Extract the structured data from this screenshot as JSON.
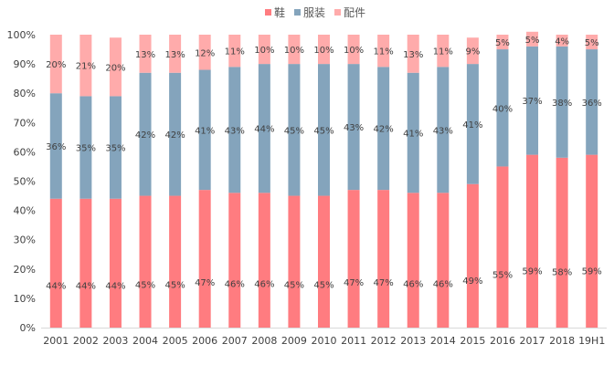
{
  "chart_data": {
    "type": "bar",
    "stacked": true,
    "percent": true,
    "categories": [
      "2001",
      "2002",
      "2003",
      "2004",
      "2005",
      "2006",
      "2007",
      "2008",
      "2009",
      "2010",
      "2011",
      "2012",
      "2013",
      "2014",
      "2015",
      "2016",
      "2017",
      "2018",
      "19H1"
    ],
    "series": [
      {
        "name": "鞋",
        "color": "#FF7C80",
        "values": [
          44,
          44,
          44,
          45,
          45,
          47,
          46,
          46,
          45,
          45,
          47,
          47,
          46,
          46,
          49,
          55,
          59,
          58,
          59
        ],
        "labels": [
          "44%",
          "44%",
          "44%",
          "45%",
          "45%",
          "47%",
          "46%",
          "46%",
          "45%",
          "45%",
          "47%",
          "47%",
          "46%",
          "46%",
          "49%",
          "55%",
          "59%",
          "58%",
          "59%"
        ]
      },
      {
        "name": "服装",
        "color": "#84A4BC",
        "values": [
          36,
          35,
          35,
          42,
          42,
          41,
          43,
          44,
          45,
          45,
          43,
          42,
          41,
          43,
          41,
          40,
          37,
          38,
          36
        ],
        "labels": [
          "36%",
          "35%",
          "35%",
          "42%",
          "42%",
          "41%",
          "43%",
          "44%",
          "45%",
          "45%",
          "43%",
          "42%",
          "41%",
          "43%",
          "41%",
          "40%",
          "37%",
          "38%",
          "36%"
        ]
      },
      {
        "name": "配件",
        "color": "#FFABAB",
        "values": [
          20,
          21,
          20,
          13,
          13,
          12,
          11,
          10,
          10,
          10,
          10,
          11,
          13,
          11,
          9,
          5,
          5,
          4,
          5
        ],
        "labels": [
          "20%",
          "21%",
          "20%",
          "13%",
          "13%",
          "12%",
          "11%",
          "10%",
          "10%",
          "10%",
          "10%",
          "11%",
          "13%",
          "11%",
          "9%",
          "5%",
          "5%",
          "4%",
          "5%"
        ]
      }
    ],
    "yticks": [
      "0%",
      "10%",
      "20%",
      "30%",
      "40%",
      "50%",
      "60%",
      "70%",
      "80%",
      "90%",
      "100%"
    ],
    "ylim": [
      0,
      100
    ],
    "legend": "top-center",
    "grid": false
  }
}
